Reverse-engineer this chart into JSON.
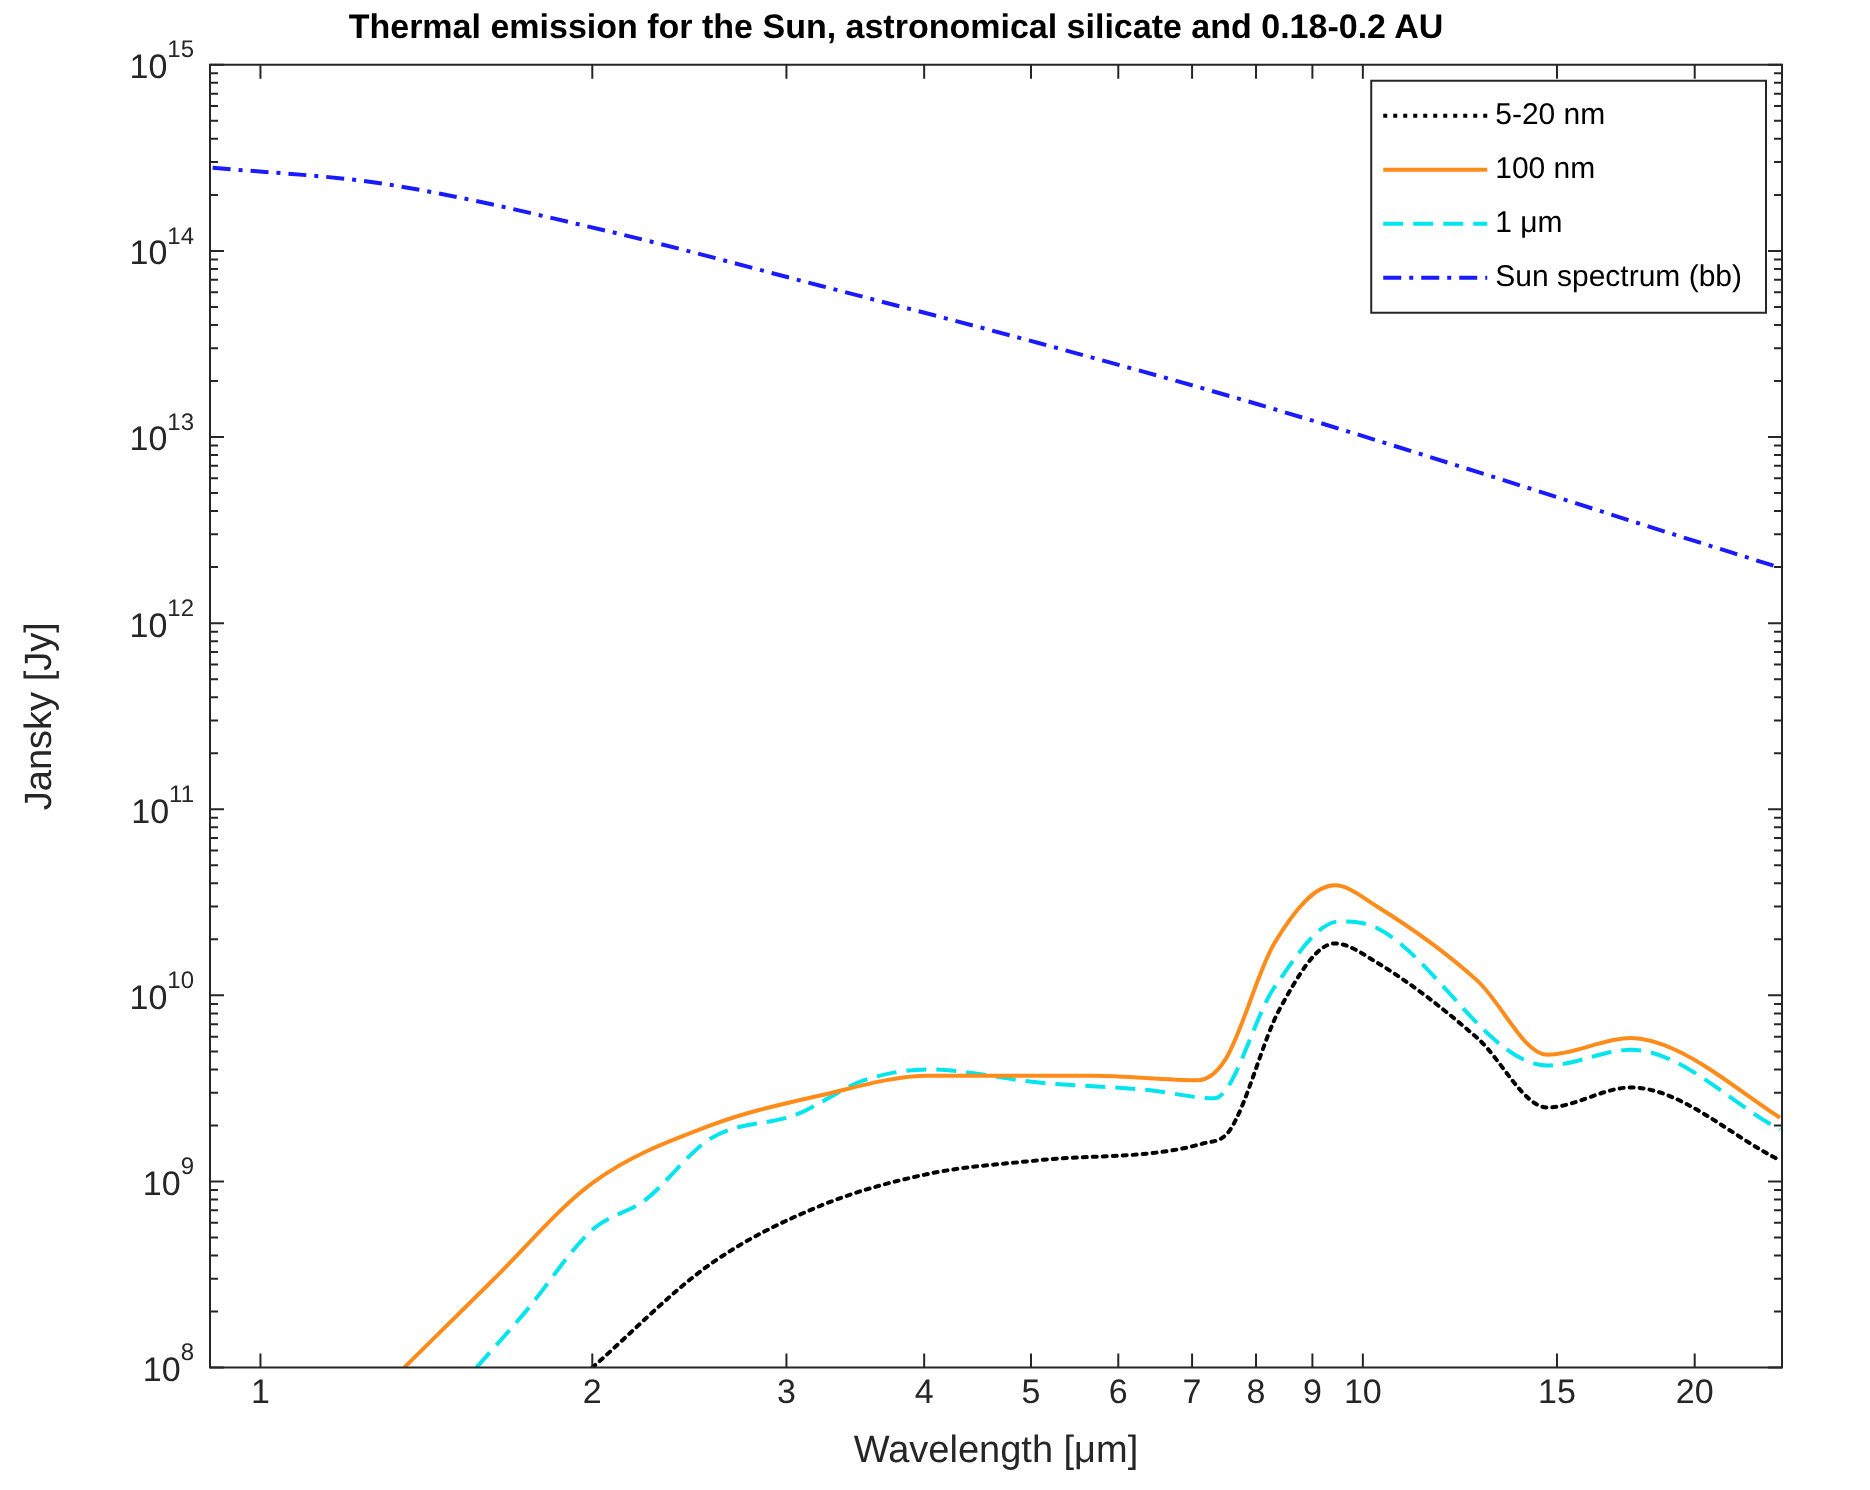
{
  "chart_data": {
    "type": "line",
    "title": "Thermal emission for the Sun, astronomical silicate and 0.18-0.2 AU",
    "xlabel": "Wavelength [μm]",
    "ylabel": "Jansky [Jy]",
    "log": "xy",
    "grid": false,
    "legend": "top right",
    "marker": "none",
    "xlim": [
      0.9,
      24
    ],
    "xticks": [
      1,
      2,
      3,
      4,
      5,
      6,
      7,
      8,
      9,
      10,
      15,
      20
    ],
    "ylim": [
      100000000.0,
      1000000000000000.0
    ],
    "yticks": [
      {
        "value": 100000000.0,
        "label": "10$^{8}$"
      },
      {
        "value": 1000000000.0,
        "label": "10$^{9}$"
      },
      {
        "value": 10000000000.0,
        "label": "10$^{10}$"
      },
      {
        "value": 100000000000.0,
        "label": "10$^{11}$"
      },
      {
        "value": 1000000000000.0,
        "label": "10$^{12}$"
      },
      {
        "value": 10000000000000.0,
        "label": "10$^{13}$"
      },
      {
        "value": 100000000000000.0,
        "label": "10$^{14}$"
      },
      {
        "value": 1000000000000000.0,
        "label": "10$^{15}$"
      }
    ],
    "series": [
      {
        "name": "5-20 nm",
        "color": "#000000",
        "line_style": "dotted",
        "x": [
          2.0,
          2.56,
          3.22,
          4.04,
          5.08,
          7.16,
          7.58,
          8.41,
          9.43,
          10.3,
          12.7,
          14.7,
          17.5,
          23.9
        ],
        "values": [
          100000000.0,
          360000000.0,
          740000000.0,
          1100000000.0,
          1300000000.0,
          1600000000.0,
          1900000000.0,
          8500000000.0,
          19000000000.0,
          15000000000.0,
          5900000000.0,
          2500000000.0,
          3200000000.0,
          1300000000.0
        ]
      },
      {
        "name": "100 nm",
        "color": "#ff8c1a",
        "line_style": "solid",
        "x": [
          1.35,
          1.62,
          2.0,
          2.56,
          3.22,
          4.04,
          5.7,
          7.08,
          7.5,
          8.31,
          9.43,
          10.3,
          12.7,
          14.7,
          17.5,
          19.2,
          23.9
        ],
        "values": [
          100000000.0,
          290000000.0,
          980000000.0,
          2000000000.0,
          2900000000.0,
          3700000000.0,
          3700000000.0,
          3500000000.0,
          4500000000.0,
          19000000000.0,
          39000000000.0,
          30000000000.0,
          12000000000.0,
          4800000000.0,
          5900000000.0,
          5100000000.0,
          2200000000.0
        ]
      },
      {
        "name": "1 μm",
        "color": "#00e5ee",
        "line_style": "dashed",
        "x": [
          1.57,
          1.74,
          2.0,
          2.23,
          2.56,
          3.07,
          3.53,
          4.04,
          5.08,
          6.39,
          7.33,
          8.31,
          9.53,
          10.3,
          14.7,
          17.5,
          23.9
        ],
        "values": [
          100000000.0,
          200000000.0,
          550000000.0,
          790000000.0,
          1700000000.0,
          2300000000.0,
          3500000000.0,
          4000000000.0,
          3400000000.0,
          3100000000.0,
          2800000000.0,
          11000000000.0,
          25000000000.0,
          23000000000.0,
          4200000000.0,
          5100000000.0,
          1900000000.0
        ]
      },
      {
        "name": "Sun spectrum (bb)",
        "color": "#1a1aff",
        "line_style": "dashdot",
        "x": [
          0.905,
          1.29,
          2.04,
          3.22,
          5.08,
          8.03,
          12.7,
          17.9,
          23.8
        ],
        "values": [
          280000000000000.0,
          230000000000000.0,
          130000000000000.0,
          65000000000000.0,
          32000000000000.0,
          15000000000000.0,
          6500000000000.0,
          3400000000000.0,
          2000000000000.0
        ]
      }
    ]
  }
}
